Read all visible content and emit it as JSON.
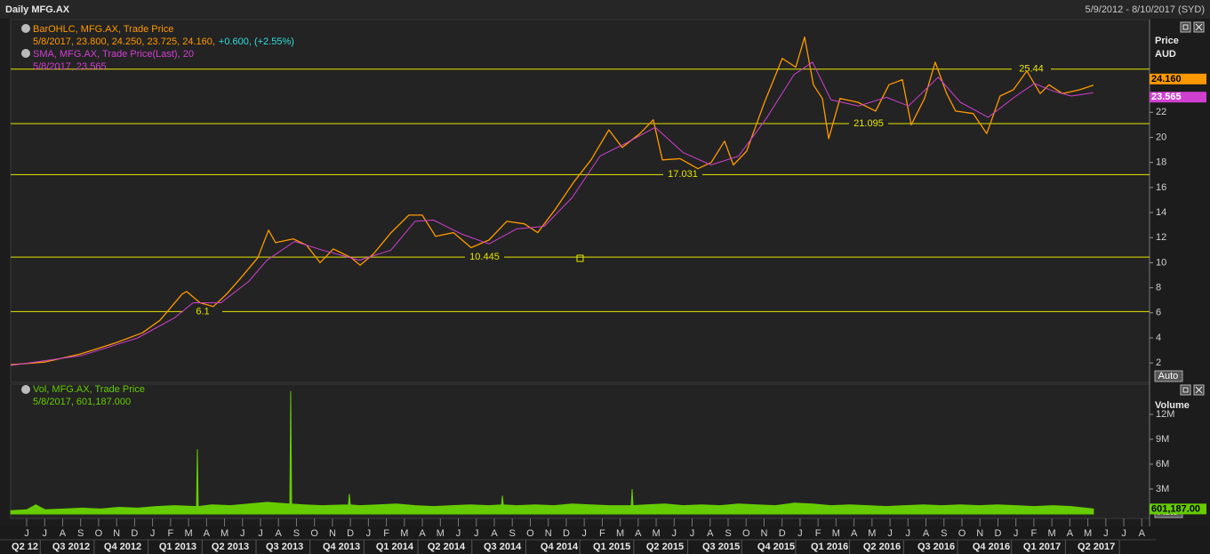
{
  "header": {
    "title": "Daily MFG.AX",
    "range": "5/9/2012 - 8/10/2017 (SYD)"
  },
  "chart_data": [
    {
      "type": "line",
      "ylabel": "Price",
      "yunit": "AUD",
      "scale_button": "Auto",
      "xlim": [
        -0.89,
        62.43
      ],
      "ylim": [
        0.45,
        29.4
      ],
      "yticks": [
        2,
        4,
        6,
        8,
        10,
        12,
        14,
        16,
        18,
        20,
        22
      ],
      "levels": [
        25.44,
        21.095,
        17.031,
        10.445,
        6.1
      ],
      "level_color": "#e6e600",
      "series": [
        {
          "name": "BarOHLC, MFG.AX, Trade Price",
          "color": "#ff9900",
          "legend_detail": "5/8/2017, 23.800, 24.250, 23.725, 24.160,",
          "legend_change": "+0.600, (+2.55%)",
          "badge": "24.160",
          "x": [
            -0.89,
            0.99,
            2.96,
            4.94,
            6.43,
            7.41,
            8.65,
            8.89,
            9.64,
            10.38,
            11.12,
            11.86,
            12.85,
            13.45,
            13.84,
            14.82,
            15.56,
            16.31,
            17.05,
            18.04,
            18.54,
            19.28,
            20.26,
            21.25,
            21.99,
            22.74,
            23.73,
            24.71,
            25.7,
            26.69,
            27.67,
            28.41,
            29.41,
            30.4,
            31.38,
            32.37,
            33.11,
            34.1,
            34.84,
            35.34,
            36.33,
            37.32,
            38.06,
            38.8,
            39.29,
            40.03,
            41.02,
            42.01,
            42.76,
            43.25,
            43.74,
            44.24,
            44.59,
            45.22,
            46.21,
            47.2,
            47.94,
            48.69,
            49.18,
            49.92,
            50.51,
            51.15,
            51.65,
            52.63,
            53.38,
            54.12,
            54.86,
            55.61,
            56.35,
            56.84,
            57.58,
            58.56,
            59.31
          ],
          "values": [
            1.86,
            2.07,
            2.7,
            3.6,
            4.4,
            5.4,
            7.5,
            7.7,
            6.8,
            6.5,
            7.5,
            8.7,
            10.4,
            12.6,
            11.6,
            11.9,
            11.4,
            10.0,
            11.1,
            10.4,
            9.8,
            10.7,
            12.4,
            13.8,
            13.8,
            12.1,
            12.4,
            11.2,
            11.8,
            13.3,
            13.1,
            12.4,
            14.3,
            16.4,
            18.2,
            20.6,
            19.2,
            20.3,
            21.4,
            18.2,
            18.3,
            17.5,
            18.0,
            19.7,
            17.8,
            18.9,
            22.8,
            26.3,
            25.6,
            28.0,
            24.2,
            23.1,
            19.9,
            23.1,
            22.8,
            22.1,
            24.2,
            24.6,
            21.0,
            23.1,
            26.0,
            23.5,
            22.1,
            21.9,
            20.3,
            23.3,
            23.8,
            25.3,
            23.5,
            24.2,
            23.5,
            23.8,
            24.16
          ]
        },
        {
          "name": "SMA, MFG.AX, Trade Price(Last),  20",
          "color": "#d040d0",
          "legend_detail": "5/8/2017, 23.565",
          "badge": "23.565",
          "x": [
            -0.89,
            3.08,
            6.17,
            8.22,
            9.25,
            10.8,
            12.34,
            13.36,
            14.9,
            16.45,
            18.5,
            20.25,
            21.59,
            22.62,
            24.16,
            25.7,
            27.24,
            28.78,
            30.33,
            31.87,
            33.41,
            34.95,
            36.49,
            38.04,
            39.58,
            41.12,
            42.66,
            43.69,
            44.72,
            46.26,
            47.8,
            49.03,
            50.68,
            51.91,
            53.46,
            55.0,
            56.03,
            57.06,
            58.08,
            59.31
          ],
          "values": [
            1.8,
            2.6,
            4.0,
            5.6,
            6.8,
            6.8,
            8.5,
            10.2,
            11.7,
            11.0,
            10.2,
            11.0,
            13.3,
            13.4,
            12.3,
            11.5,
            12.7,
            12.9,
            15.2,
            18.5,
            19.6,
            20.8,
            18.8,
            17.8,
            18.5,
            21.5,
            25.0,
            26.0,
            23.0,
            22.5,
            23.2,
            22.5,
            24.8,
            22.8,
            21.6,
            23.3,
            24.3,
            23.7,
            23.3,
            23.565
          ]
        }
      ]
    },
    {
      "type": "area",
      "ylabel": "Volume",
      "scale_button": "Auto",
      "xlim": [
        -0.89,
        62.43
      ],
      "ylim": [
        -0.54,
        15.64
      ],
      "yticks": [
        {
          "value": 3,
          "label": "3M"
        },
        {
          "value": 6,
          "label": "6M"
        },
        {
          "value": 9,
          "label": "9M"
        },
        {
          "value": 12,
          "label": "12M"
        }
      ],
      "series": [
        {
          "name": "Vol, MFG.AX, Trade Price",
          "color": "#66cc00",
          "legend_detail": "5/8/2017, 601,187.000",
          "badge": "601,187.00",
          "x": [
            -0.89,
            0,
            0.51,
            1.03,
            2.06,
            3.08,
            4.11,
            5.14,
            6.17,
            7.2,
            8.22,
            9.44,
            9.49,
            9.54,
            10.28,
            11.31,
            12.34,
            13.36,
            14.63,
            14.68,
            14.73,
            15.42,
            16.45,
            17.89,
            17.94,
            17.99,
            18.5,
            19.53,
            20.56,
            21.59,
            22.62,
            23.64,
            24.67,
            25.7,
            26.4,
            26.45,
            26.5,
            27.24,
            28.27,
            29.3,
            30.33,
            31.36,
            32.38,
            33.61,
            33.66,
            33.71,
            34.44,
            35.47,
            36.49,
            37.52,
            38.55,
            39.58,
            40.6,
            41.63,
            42.66,
            43.69,
            44.72,
            45.75,
            46.77,
            47.8,
            48.83,
            49.86,
            50.88,
            51.91,
            52.94,
            53.97,
            54.99,
            56.02,
            57.05,
            58.08,
            59.31
          ],
          "values": [
            0.4,
            0.5,
            1.1,
            0.5,
            0.6,
            0.7,
            0.6,
            0.8,
            0.7,
            0.9,
            1.0,
            0.9,
            7.8,
            0.9,
            1.1,
            1.0,
            1.2,
            1.4,
            1.2,
            14.8,
            1.2,
            1.1,
            1.0,
            1.1,
            2.4,
            1.1,
            1.0,
            1.1,
            1.2,
            1.0,
            0.9,
            1.0,
            1.1,
            1.0,
            1.1,
            2.2,
            1.1,
            1.0,
            1.1,
            1.0,
            1.2,
            1.1,
            1.0,
            1.0,
            3.0,
            1.0,
            1.1,
            1.2,
            1.0,
            1.1,
            1.0,
            1.2,
            1.1,
            1.0,
            1.3,
            1.2,
            1.0,
            1.1,
            1.0,
            0.9,
            1.0,
            1.1,
            1.0,
            1.1,
            1.0,
            1.1,
            1.0,
            0.9,
            1.0,
            0.9,
            0.601187
          ]
        }
      ],
      "xticks": [
        {
          "value": 0,
          "label": "J"
        },
        {
          "value": 1,
          "label": "J"
        },
        {
          "value": 2,
          "label": "A"
        },
        {
          "value": 3,
          "label": "S"
        },
        {
          "value": 4,
          "label": "O"
        },
        {
          "value": 5,
          "label": "N"
        },
        {
          "value": 6,
          "label": "D"
        },
        {
          "value": 7,
          "label": "J"
        },
        {
          "value": 8,
          "label": "F"
        },
        {
          "value": 9,
          "label": "M"
        },
        {
          "value": 10,
          "label": "A"
        },
        {
          "value": 11,
          "label": "M"
        },
        {
          "value": 12,
          "label": "J"
        },
        {
          "value": 13,
          "label": "J"
        },
        {
          "value": 14,
          "label": "A"
        },
        {
          "value": 15,
          "label": "S"
        },
        {
          "value": 16,
          "label": "O"
        },
        {
          "value": 17,
          "label": "N"
        },
        {
          "value": 18,
          "label": "D"
        },
        {
          "value": 19,
          "label": "J"
        },
        {
          "value": 20,
          "label": "F"
        },
        {
          "value": 21,
          "label": "M"
        },
        {
          "value": 22,
          "label": "A"
        },
        {
          "value": 23,
          "label": "M"
        },
        {
          "value": 24,
          "label": "J"
        },
        {
          "value": 25,
          "label": "J"
        },
        {
          "value": 26,
          "label": "A"
        },
        {
          "value": 27,
          "label": "S"
        },
        {
          "value": 28,
          "label": "O"
        },
        {
          "value": 29,
          "label": "N"
        },
        {
          "value": 30,
          "label": "D"
        },
        {
          "value": 31,
          "label": "J"
        },
        {
          "value": 32,
          "label": "F"
        },
        {
          "value": 33,
          "label": "M"
        },
        {
          "value": 34,
          "label": "A"
        },
        {
          "value": 35,
          "label": "M"
        },
        {
          "value": 36,
          "label": "J"
        },
        {
          "value": 37,
          "label": "J"
        },
        {
          "value": 38,
          "label": "A"
        },
        {
          "value": 39,
          "label": "S"
        },
        {
          "value": 40,
          "label": "O"
        },
        {
          "value": 41,
          "label": "N"
        },
        {
          "value": 42,
          "label": "D"
        },
        {
          "value": 43,
          "label": "J"
        },
        {
          "value": 44,
          "label": "F"
        },
        {
          "value": 45,
          "label": "M"
        },
        {
          "value": 46,
          "label": "A"
        },
        {
          "value": 47,
          "label": "M"
        },
        {
          "value": 48,
          "label": "J"
        },
        {
          "value": 49,
          "label": "J"
        },
        {
          "value": 50,
          "label": "A"
        },
        {
          "value": 51,
          "label": "S"
        },
        {
          "value": 52,
          "label": "O"
        },
        {
          "value": 53,
          "label": "N"
        },
        {
          "value": 54,
          "label": "D"
        },
        {
          "value": 55,
          "label": "J"
        },
        {
          "value": 56,
          "label": "F"
        },
        {
          "value": 57,
          "label": "M"
        },
        {
          "value": 58,
          "label": "A"
        },
        {
          "value": 59,
          "label": "M"
        },
        {
          "value": 60,
          "label": "J"
        },
        {
          "value": 61,
          "label": "J"
        },
        {
          "value": 62,
          "label": "A"
        }
      ],
      "quarter_ticks": [
        {
          "value": -0.1,
          "label": "Q2 12"
        },
        {
          "value": 2.47,
          "label": "Q3 2012"
        },
        {
          "value": 5.34,
          "label": "Q4 2012"
        },
        {
          "value": 8.4,
          "label": "Q1 2013"
        },
        {
          "value": 11.32,
          "label": "Q2 2013"
        },
        {
          "value": 14.34,
          "label": "Q3 2013"
        },
        {
          "value": 17.5,
          "label": "Q4 2013"
        },
        {
          "value": 20.46,
          "label": "Q1 2014"
        },
        {
          "value": 23.33,
          "label": "Q2 2014"
        },
        {
          "value": 26.45,
          "label": "Q3 2014"
        },
        {
          "value": 29.61,
          "label": "Q4 2014"
        },
        {
          "value": 32.53,
          "label": "Q1 2015"
        },
        {
          "value": 35.49,
          "label": "Q2 2015"
        },
        {
          "value": 38.61,
          "label": "Q3 2015"
        },
        {
          "value": 41.67,
          "label": "Q4 2015"
        },
        {
          "value": 44.64,
          "label": "Q1 2016"
        },
        {
          "value": 47.55,
          "label": "Q2 2016"
        },
        {
          "value": 50.57,
          "label": "Q3 2016"
        },
        {
          "value": 53.63,
          "label": "Q4 2016"
        },
        {
          "value": 56.45,
          "label": "Q1 2017"
        },
        {
          "value": 59.47,
          "label": "Q2 2017"
        }
      ]
    }
  ]
}
